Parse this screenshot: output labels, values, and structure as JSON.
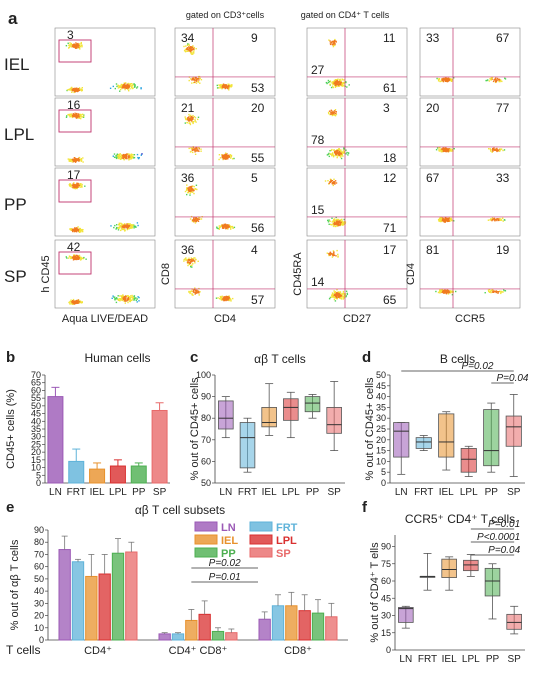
{
  "figure": {
    "panel_labels": [
      "a",
      "b",
      "c",
      "d",
      "e",
      "f"
    ],
    "gate_notes": {
      "cd3": "gated on CD3⁺cells",
      "cd4": "gated on CD4⁺ T cells"
    }
  },
  "panel_a": {
    "rows": [
      "IEL",
      "LPL",
      "PP",
      "SP"
    ],
    "col1": {
      "values": [
        "3",
        "16",
        "17",
        "42"
      ],
      "ylabel": "h CD45",
      "xlabel": "Aqua LIVE/DEAD"
    },
    "col2": {
      "tl": [
        "34",
        "21",
        "36",
        "36"
      ],
      "tr": [
        "9",
        "20",
        "5",
        "4"
      ],
      "br": [
        "53",
        "55",
        "56",
        "57"
      ],
      "ylabel": "CD8",
      "xlabel": "CD4"
    },
    "col3": {
      "tr": [
        "11",
        "3",
        "12",
        "17"
      ],
      "ml": [
        "27",
        "78",
        "15",
        "14"
      ],
      "br": [
        "61",
        "18",
        "71",
        "65"
      ],
      "ylabel": "CD45RA",
      "xlabel": "CD27"
    },
    "col4": {
      "tl": [
        "33",
        "20",
        "67",
        "81"
      ],
      "tr": [
        "67",
        "77",
        "33",
        "19"
      ],
      "ylabel": "CD4",
      "xlabel": "CCR5"
    }
  },
  "legend_e": {
    "items": [
      "LN",
      "FRT",
      "IEL",
      "LPL",
      "PP",
      "SP"
    ],
    "colors": [
      "#9b59b6",
      "#5fb3d9",
      "#e8912c",
      "#d93030",
      "#4caf50",
      "#e86a6a"
    ]
  },
  "chart_data": [
    {
      "id": "b",
      "type": "bar",
      "title": "Human cells",
      "categories": [
        "LN",
        "FRT",
        "IEL",
        "LPL",
        "PP",
        "SP"
      ],
      "values": [
        56,
        14,
        9,
        11,
        11,
        47
      ],
      "errors": [
        6,
        8,
        4,
        4,
        2,
        5
      ],
      "ylabel": "CD45+ cells (%)",
      "ylim": [
        0,
        70
      ],
      "yticks": [
        "0",
        "5",
        "10",
        "15",
        "20",
        "25",
        "30",
        "35",
        "40",
        "45",
        "50",
        "55",
        "60",
        "65",
        "70"
      ],
      "colors": [
        "#9b59b6",
        "#5fb3d9",
        "#e8912c",
        "#d93030",
        "#4caf50",
        "#e86a6a"
      ]
    },
    {
      "id": "c",
      "type": "box",
      "title": "αβ T cells",
      "categories": [
        "LN",
        "FRT",
        "IEL",
        "LPL",
        "PP",
        "SP"
      ],
      "ylabel": "% out of CD45+ cells",
      "ylim": [
        50,
        100
      ],
      "yticks": [
        "50",
        "60",
        "70",
        "80",
        "90",
        "100"
      ],
      "boxes": [
        {
          "min": 71,
          "q1": 75,
          "median": 80,
          "q3": 88,
          "max": 90
        },
        {
          "min": 55,
          "q1": 57,
          "median": 71,
          "q3": 78,
          "max": 80
        },
        {
          "min": 72,
          "q1": 76,
          "median": 78,
          "q3": 85,
          "max": 96
        },
        {
          "min": 71,
          "q1": 79,
          "median": 85,
          "q3": 89,
          "max": 92
        },
        {
          "min": 80,
          "q1": 83,
          "median": 87,
          "q3": 90,
          "max": 91
        },
        {
          "min": 65,
          "q1": 73,
          "median": 77,
          "q3": 85,
          "max": 97
        }
      ],
      "colors": [
        "#9b59b6",
        "#5fb3d9",
        "#e8912c",
        "#d93030",
        "#4caf50",
        "#e86a6a"
      ]
    },
    {
      "id": "d",
      "type": "box",
      "title": "B cells",
      "categories": [
        "LN",
        "FRT",
        "IEL",
        "LPL",
        "PP",
        "SP"
      ],
      "ylabel": "% out of CD45+ cells",
      "ylim": [
        0,
        50
      ],
      "yticks": [
        "0",
        "5",
        "10",
        "15",
        "20",
        "25",
        "30",
        "35",
        "40",
        "45",
        "50"
      ],
      "boxes": [
        {
          "min": 4,
          "q1": 12,
          "median": 24,
          "q3": 28,
          "max": 28
        },
        {
          "min": 15,
          "q1": 16,
          "median": 19,
          "q3": 21,
          "max": 22
        },
        {
          "min": 6,
          "q1": 12,
          "median": 19,
          "q3": 32,
          "max": 33
        },
        {
          "min": 3,
          "q1": 5,
          "median": 11,
          "q3": 16,
          "max": 17
        },
        {
          "min": 5,
          "q1": 8,
          "median": 15,
          "q3": 34,
          "max": 37
        },
        {
          "min": 3,
          "q1": 17,
          "median": 26,
          "q3": 31,
          "max": 41
        }
      ],
      "significance": [
        {
          "from": 0,
          "to": 5,
          "label": "P=0.02"
        },
        {
          "from": 4,
          "to": 5,
          "label": "P=0.04"
        }
      ],
      "colors": [
        "#9b59b6",
        "#5fb3d9",
        "#e8912c",
        "#d93030",
        "#4caf50",
        "#e86a6a"
      ]
    },
    {
      "id": "e",
      "type": "bar",
      "title": "αβ T cell subsets",
      "groups": [
        "CD4⁺",
        "CD4⁺ CD8⁺",
        "CD8⁺"
      ],
      "group_prefix": "T cells",
      "series": [
        {
          "name": "LN",
          "values": [
            74,
            5,
            17
          ],
          "errors": [
            11,
            1,
            6
          ]
        },
        {
          "name": "FRT",
          "values": [
            64,
            5,
            28
          ],
          "errors": [
            2,
            1,
            9
          ]
        },
        {
          "name": "IEL",
          "values": [
            52,
            16,
            28
          ],
          "errors": [
            18,
            9,
            11
          ]
        },
        {
          "name": "LPL",
          "values": [
            54,
            21,
            24
          ],
          "errors": [
            16,
            11,
            13
          ]
        },
        {
          "name": "PP",
          "values": [
            71,
            7,
            22
          ],
          "errors": [
            12,
            3,
            11
          ]
        },
        {
          "name": "SP",
          "values": [
            72,
            6,
            19
          ],
          "errors": [
            8,
            3,
            11
          ]
        }
      ],
      "ylabel": "% out of αβ T cells",
      "ylim": [
        0,
        90
      ],
      "yticks": [
        "0",
        "10",
        "20",
        "30",
        "40",
        "50",
        "60",
        "70",
        "80",
        "90"
      ],
      "significance": [
        {
          "label": "P=0.02"
        },
        {
          "label": "P=0.01"
        }
      ],
      "colors": [
        "#9b59b6",
        "#5fb3d9",
        "#e8912c",
        "#d93030",
        "#4caf50",
        "#e86a6a"
      ]
    },
    {
      "id": "f",
      "type": "box",
      "title": "CCR5⁺ CD4⁺ T cells",
      "categories": [
        "LN",
        "FRT",
        "IEL",
        "LPL",
        "PP",
        "SP"
      ],
      "ylabel": "% out of CD4⁺ T ells",
      "ylim": [
        0,
        100
      ],
      "yticks": [
        "0",
        "15",
        "30",
        "45",
        "60",
        "75",
        "90"
      ],
      "boxes": [
        {
          "min": 19,
          "q1": 24,
          "median": 36,
          "q3": 37,
          "max": 38
        },
        {
          "min": 52,
          "q1": 64,
          "median": 64,
          "q3": 64,
          "max": 84
        },
        {
          "min": 52,
          "q1": 63,
          "median": 70,
          "q3": 79,
          "max": 81
        },
        {
          "min": 64,
          "q1": 69,
          "median": 74,
          "q3": 78,
          "max": 83
        },
        {
          "min": 27,
          "q1": 47,
          "median": 60,
          "q3": 71,
          "max": 75
        },
        {
          "min": 14,
          "q1": 18,
          "median": 24,
          "q3": 31,
          "max": 38
        }
      ],
      "significance": [
        {
          "from": 3,
          "to": 5,
          "label": "P=0.01"
        },
        {
          "from": 3,
          "to": 5,
          "label": "P<0.0001"
        },
        {
          "from": 3,
          "to": 5,
          "label": "P=0.04"
        }
      ],
      "colors": [
        "#9b59b6",
        "#5fb3d9",
        "#e8912c",
        "#d93030",
        "#4caf50",
        "#e86a6a"
      ]
    }
  ]
}
